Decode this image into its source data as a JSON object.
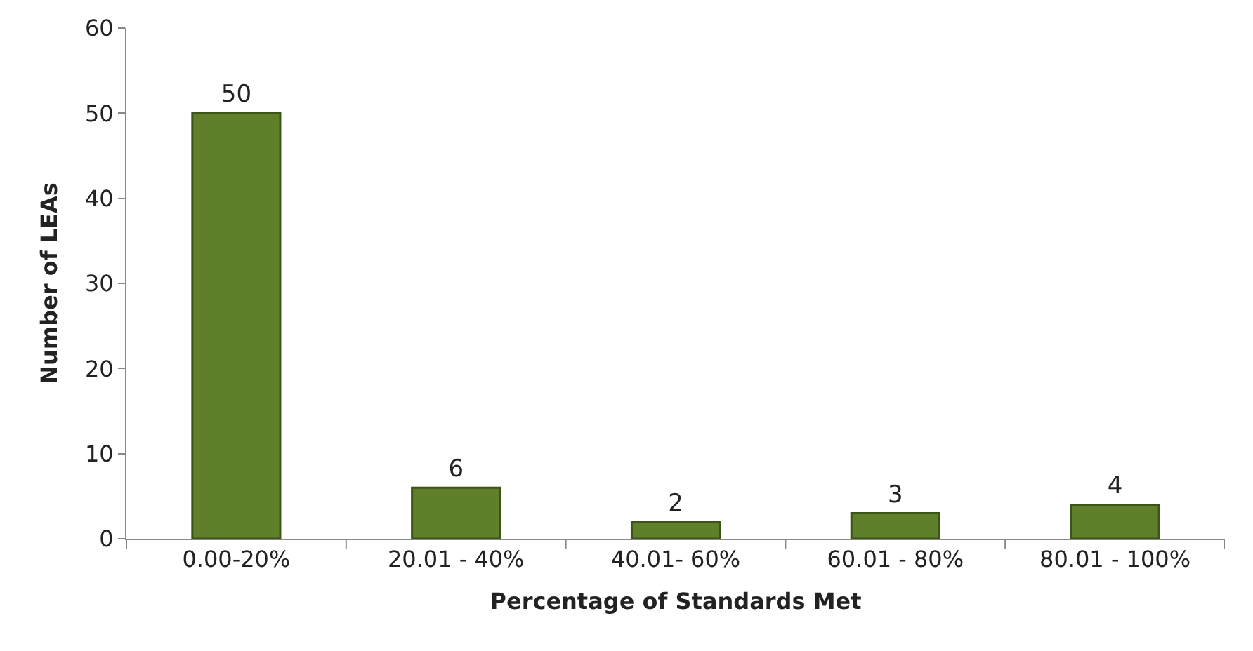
{
  "chart_data": {
    "type": "bar",
    "xlabel": "Percentage of Standards Met",
    "ylabel": "Number of LEAs",
    "categories": [
      "0.00-20%",
      "20.01 - 40%",
      "40.01- 60%",
      "60.01 - 80%",
      "80.01 - 100%"
    ],
    "values": [
      50,
      6,
      2,
      3,
      4
    ],
    "color": "#5f7f2a",
    "ylim": [
      0,
      60
    ],
    "yticks": [
      0,
      10,
      20,
      30,
      40,
      50,
      60
    ],
    "legend": false,
    "data_labels": true
  }
}
